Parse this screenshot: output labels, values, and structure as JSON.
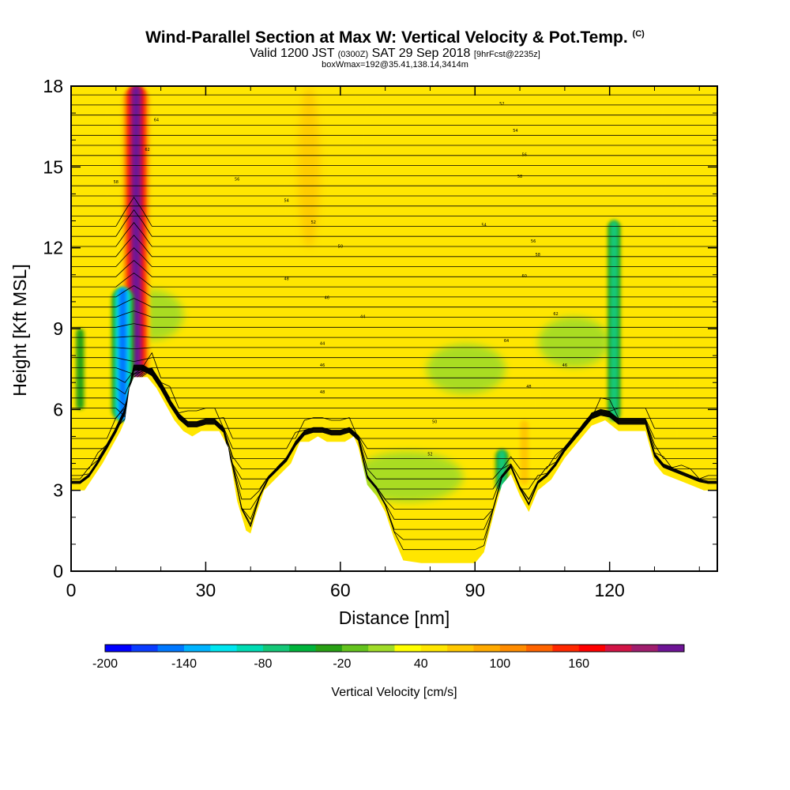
{
  "header": {
    "title": "Wind-Parallel Section at Max W: Vertical Velocity & Pot.Temp.",
    "copyright": "(C)",
    "valid_prefix": "Valid 1200 JST",
    "valid_utc": "(0300Z)",
    "valid_date": "SAT 29 Sep 2018",
    "forecast_info": "[9hrFcst@2235z]",
    "box_info": "boxWmax=192@35.41,138.14,3414m"
  },
  "chart_data": {
    "type": "heatmap",
    "xlabel": "Distance [nm]",
    "ylabel": "Height [Kft MSL]",
    "xlim": [
      0,
      144
    ],
    "ylim": [
      0,
      18
    ],
    "x_ticks": [
      "0",
      "30",
      "60",
      "90",
      "120"
    ],
    "y_ticks": [
      "0",
      "3",
      "6",
      "9",
      "12",
      "15",
      "18"
    ],
    "terrain_kft": [
      [
        0,
        3.0
      ],
      [
        3,
        3.0
      ],
      [
        5,
        3.5
      ],
      [
        7,
        4.0
      ],
      [
        9,
        4.6
      ],
      [
        11,
        5.2
      ],
      [
        12,
        5.6
      ],
      [
        13,
        6.8
      ],
      [
        14,
        7.2
      ],
      [
        17,
        7.2
      ],
      [
        19,
        6.8
      ],
      [
        21,
        6.2
      ],
      [
        23,
        5.6
      ],
      [
        25,
        5.2
      ],
      [
        27,
        5.0
      ],
      [
        29,
        5.2
      ],
      [
        31,
        5.2
      ],
      [
        33,
        5.2
      ],
      [
        35,
        4.6
      ],
      [
        37,
        2.6
      ],
      [
        39,
        1.5
      ],
      [
        40,
        1.4
      ],
      [
        41,
        2.0
      ],
      [
        43,
        3.0
      ],
      [
        46,
        3.5
      ],
      [
        49,
        4.0
      ],
      [
        51,
        4.8
      ],
      [
        53,
        4.8
      ],
      [
        55,
        5.0
      ],
      [
        57,
        4.8
      ],
      [
        59,
        4.8
      ],
      [
        61,
        4.8
      ],
      [
        63,
        5.0
      ],
      [
        64,
        4.6
      ],
      [
        66,
        3.2
      ],
      [
        68,
        2.8
      ],
      [
        70,
        2.2
      ],
      [
        72,
        1.2
      ],
      [
        74,
        0.4
      ],
      [
        78,
        0.3
      ],
      [
        84,
        0.3
      ],
      [
        90,
        0.3
      ],
      [
        92,
        0.7
      ],
      [
        94,
        2.0
      ],
      [
        96,
        3.2
      ],
      [
        98,
        3.6
      ],
      [
        100,
        2.8
      ],
      [
        102,
        2.2
      ],
      [
        104,
        3.0
      ],
      [
        107,
        3.4
      ],
      [
        110,
        4.2
      ],
      [
        113,
        4.8
      ],
      [
        116,
        5.4
      ],
      [
        119,
        5.6
      ],
      [
        122,
        5.2
      ],
      [
        125,
        5.2
      ],
      [
        128,
        5.2
      ],
      [
        130,
        4.0
      ],
      [
        132,
        3.6
      ],
      [
        135,
        3.4
      ],
      [
        138,
        3.2
      ],
      [
        141,
        3.0
      ],
      [
        144,
        3.0
      ]
    ],
    "updrafts_cm_s": [
      {
        "x": 14.5,
        "y_from": 7.2,
        "y_to": 18,
        "peak": 192
      },
      {
        "x": 101,
        "y_from": 3.2,
        "y_to": 5.6,
        "peak": 60
      },
      {
        "x": 127,
        "y_from": 5.5,
        "y_to": 13,
        "peak": 30
      }
    ],
    "downdrafts_cm_s": [
      {
        "x": 11.5,
        "y_from": 5.6,
        "y_to": 10.5,
        "peak": -180
      },
      {
        "x": 2,
        "y_from": 6.0,
        "y_to": 9.0,
        "peak": -60
      },
      {
        "x": 96,
        "y_from": 3.0,
        "y_to": 4.5,
        "peak": -80
      },
      {
        "x": 121,
        "y_from": 5.6,
        "y_to": 13.0,
        "peak": -80
      }
    ],
    "theta_contour_labels": [
      "44",
      "46",
      "48",
      "50",
      "52",
      "54",
      "56",
      "58",
      "60",
      "62",
      "64"
    ],
    "theta_contour_start": 52,
    "theta_contour_count": 46,
    "colorbar": {
      "label": "Vertical Velocity [cm/s]",
      "tick_labels": [
        "-200",
        "-140",
        "-80",
        "-20",
        "40",
        "100",
        "160"
      ],
      "colors": [
        "#0000ff",
        "#0a3cff",
        "#0078ff",
        "#00b4ff",
        "#00e6f0",
        "#00dcb4",
        "#14c878",
        "#00b43c",
        "#28a014",
        "#64c31e",
        "#a0dc28",
        "#ffff00",
        "#ffe600",
        "#ffc800",
        "#ffaa00",
        "#ff8c00",
        "#ff6400",
        "#ff2800",
        "#ff0000",
        "#d21446",
        "#a01e6e",
        "#6e1496"
      ]
    }
  }
}
